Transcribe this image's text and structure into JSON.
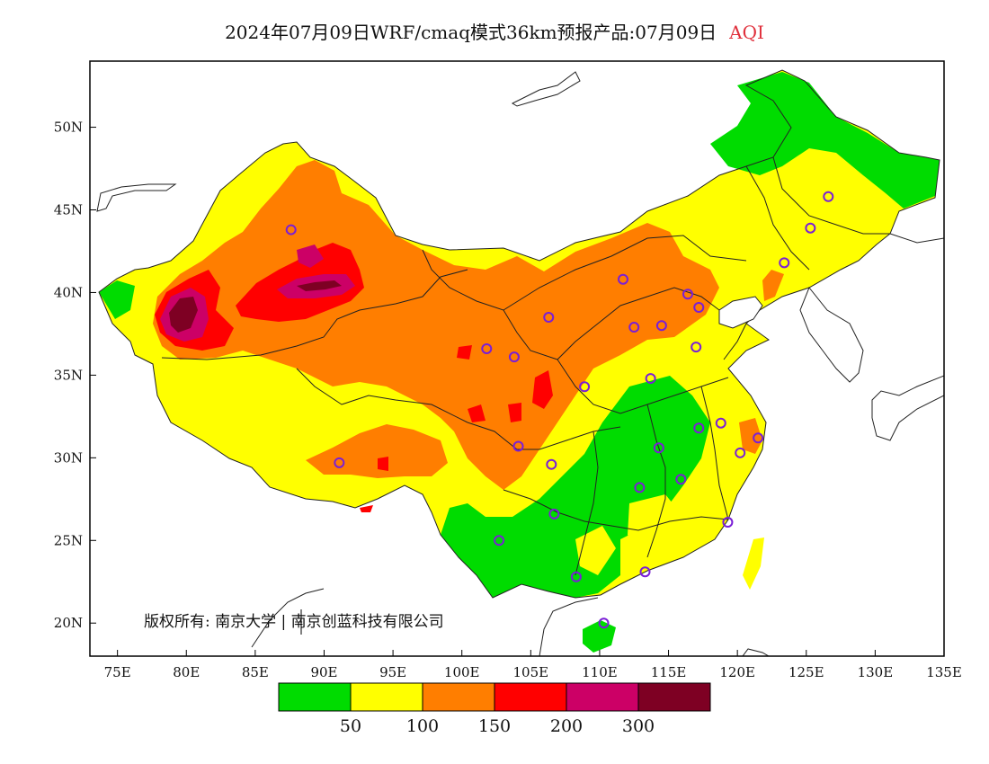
{
  "title": {
    "main": "2024年07月09日WRF/cmaq模式36km预报产品:07月09日",
    "variable": "AQI"
  },
  "map": {
    "lon_range": [
      73,
      135
    ],
    "lat_range": [
      18,
      54
    ],
    "x_ticks": [
      "75E",
      "80E",
      "85E",
      "90E",
      "95E",
      "100E",
      "105E",
      "110E",
      "115E",
      "120E",
      "125E",
      "130E",
      "135E"
    ],
    "y_ticks": [
      "50N",
      "45N",
      "40N",
      "35N",
      "30N",
      "25N",
      "20N"
    ],
    "copyright": "版权所有: 南京大学 | 南京创蓝科技有限公司"
  },
  "legend": {
    "colors": [
      "#00dc00",
      "#ffff00",
      "#ff7e00",
      "#ff0000",
      "#cc0066",
      "#7e0023"
    ],
    "labels": [
      "50",
      "100",
      "150",
      "200",
      "300"
    ]
  },
  "cities": [
    {
      "lon": 87.6,
      "lat": 43.8
    },
    {
      "lon": 91.1,
      "lat": 29.7
    },
    {
      "lon": 101.8,
      "lat": 36.6
    },
    {
      "lon": 103.8,
      "lat": 36.1
    },
    {
      "lon": 106.3,
      "lat": 38.5
    },
    {
      "lon": 104.1,
      "lat": 30.7
    },
    {
      "lon": 106.5,
      "lat": 29.6
    },
    {
      "lon": 106.7,
      "lat": 26.6
    },
    {
      "lon": 102.7,
      "lat": 25.0
    },
    {
      "lon": 108.3,
      "lat": 22.8
    },
    {
      "lon": 110.3,
      "lat": 20.0
    },
    {
      "lon": 113.3,
      "lat": 23.1
    },
    {
      "lon": 112.9,
      "lat": 28.2
    },
    {
      "lon": 114.3,
      "lat": 30.6
    },
    {
      "lon": 115.9,
      "lat": 28.7
    },
    {
      "lon": 119.3,
      "lat": 26.1
    },
    {
      "lon": 120.2,
      "lat": 30.3
    },
    {
      "lon": 121.5,
      "lat": 31.2
    },
    {
      "lon": 118.8,
      "lat": 32.1
    },
    {
      "lon": 117.2,
      "lat": 31.8
    },
    {
      "lon": 113.7,
      "lat": 34.8
    },
    {
      "lon": 117.0,
      "lat": 36.7
    },
    {
      "lon": 114.5,
      "lat": 38.0
    },
    {
      "lon": 112.5,
      "lat": 37.9
    },
    {
      "lon": 111.7,
      "lat": 40.8
    },
    {
      "lon": 116.4,
      "lat": 39.9
    },
    {
      "lon": 117.2,
      "lat": 39.1
    },
    {
      "lon": 123.4,
      "lat": 41.8
    },
    {
      "lon": 125.3,
      "lat": 43.9
    },
    {
      "lon": 126.6,
      "lat": 45.8
    },
    {
      "lon": 108.9,
      "lat": 34.3
    }
  ]
}
